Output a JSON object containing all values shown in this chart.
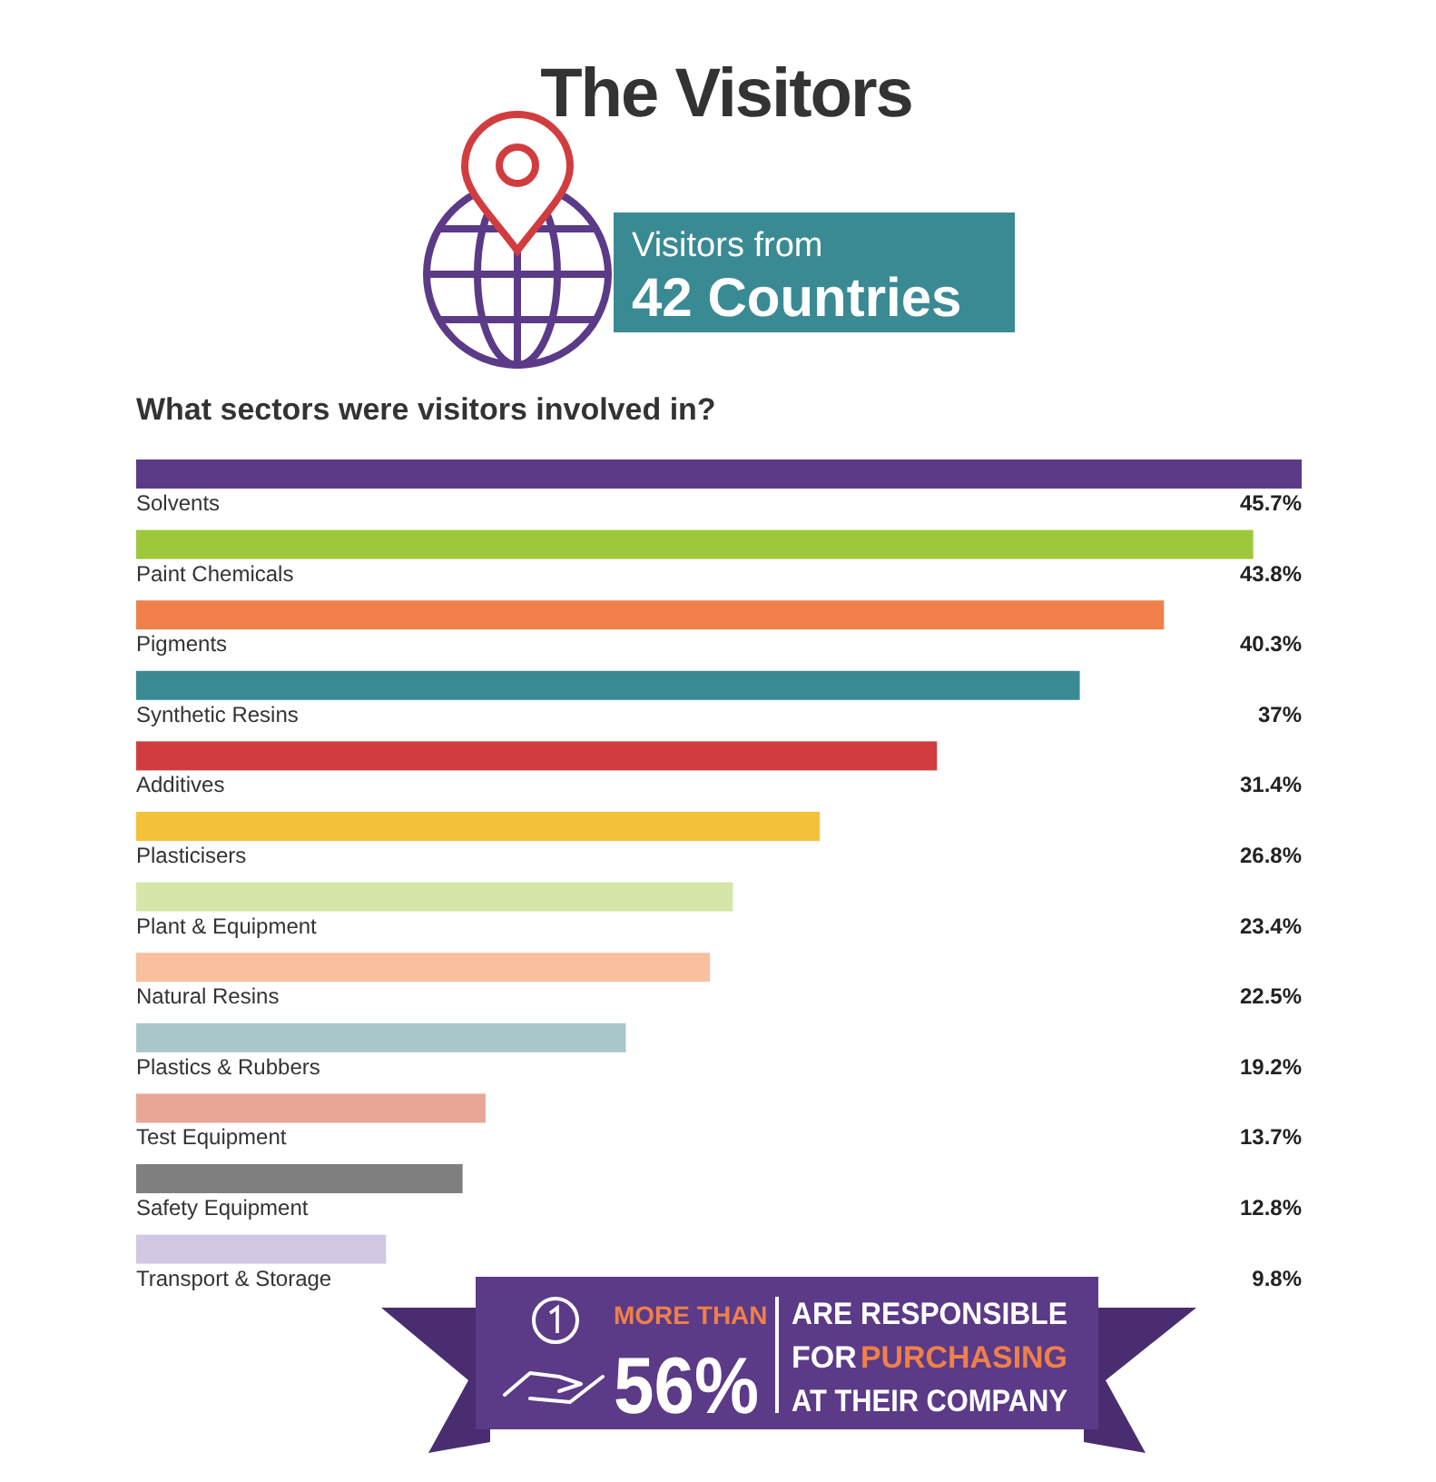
{
  "chart_data": {
    "type": "bar",
    "orientation": "horizontal",
    "title": "The Visitors",
    "subtitle": "What sectors were visitors involved in?",
    "categories": [
      "Solvents",
      "Paint Chemicals",
      "Pigments",
      "Synthetic Resins",
      "Additives",
      "Plasticisers",
      "Plant & Equipment",
      "Natural Resins",
      "Plastics & Rubbers",
      "Test Equipment",
      "Safety Equipment",
      "Transport & Storage"
    ],
    "values": [
      45.7,
      43.8,
      40.3,
      37,
      31.4,
      26.8,
      23.4,
      22.5,
      19.2,
      13.7,
      12.8,
      9.8
    ],
    "colors": [
      "#5b3a87",
      "#9dc83b",
      "#ef8049",
      "#3a8a94",
      "#d13d3f",
      "#f4c13b",
      "#d6e6a8",
      "#f8c09f",
      "#a9c7cb",
      "#e8a696",
      "#7f7f7f",
      "#d2c8e3"
    ],
    "value_labels": [
      "45.7%",
      "43.8%",
      "40.3%",
      "37%",
      "31.4%",
      "26.8%",
      "23.4%",
      "22.5%",
      "19.2%",
      "13.7%",
      "12.8%",
      "9.8%"
    ],
    "annotations": [
      "Visitors from",
      "42 Countries",
      "MORE THAN",
      "56%",
      "ARE RESPONSIBLE",
      "FOR",
      "PURCHASING",
      "AT THEIR COMPANY"
    ]
  }
}
